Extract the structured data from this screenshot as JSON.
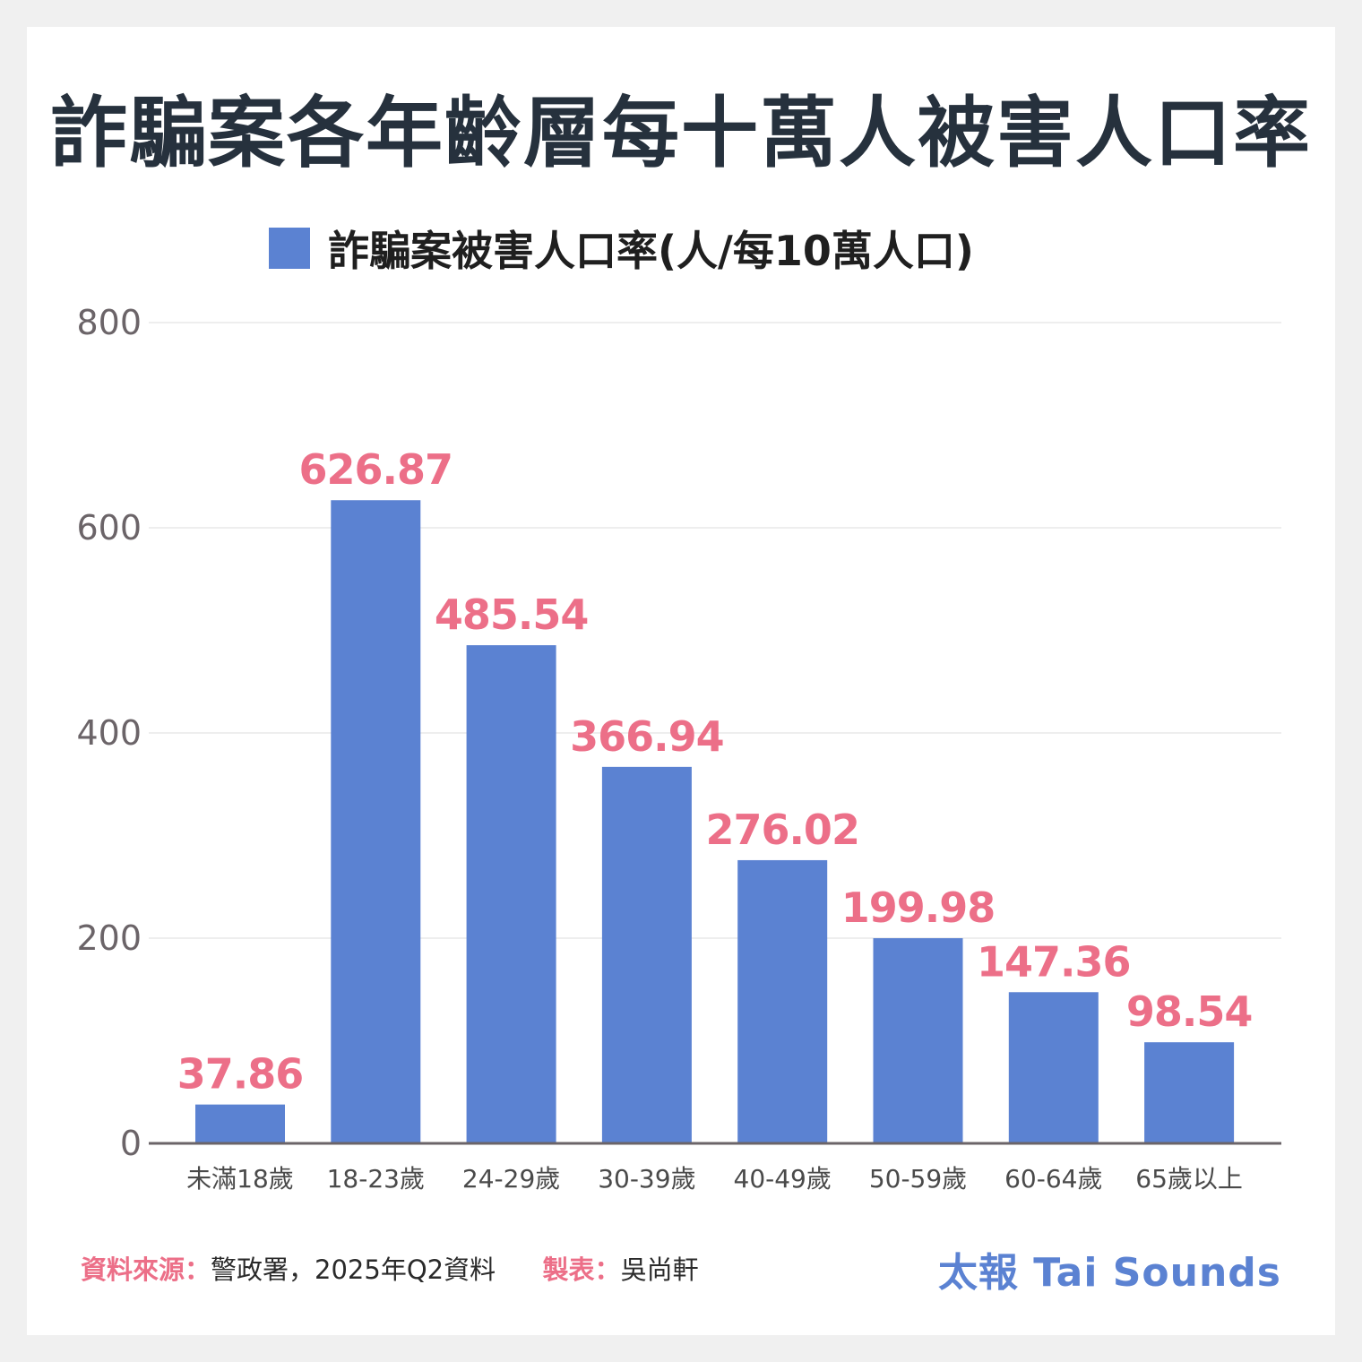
{
  "title": "詐騙案各年齡層每十萬人被害人口率",
  "colors": {
    "bar": "#5b82d2",
    "value_label": "#ec6f88",
    "axis": "#6b6468",
    "grid": "#dddddd",
    "tick_label": "#6b6468"
  },
  "chart_data": {
    "type": "bar",
    "categories": [
      "未滿18歲",
      "18-23歲",
      "24-29歲",
      "30-39歲",
      "40-49歲",
      "50-59歲",
      "60-64歲",
      "65歲以上"
    ],
    "series": [
      {
        "name": "詐騙案被害人口率(人/每10萬人口)",
        "values": [
          37.86,
          626.87,
          485.54,
          366.94,
          276.02,
          199.98,
          147.36,
          98.54
        ]
      }
    ],
    "value_labels": [
      "37.86",
      "626.87",
      "485.54",
      "366.94",
      "276.02",
      "199.98",
      "147.36",
      "98.54"
    ],
    "y_ticks": [
      "0",
      "200",
      "400",
      "600",
      "800"
    ],
    "ylim": [
      0,
      800
    ],
    "grid": true,
    "legend_position": "top"
  },
  "footer": {
    "source_label": "資料來源：",
    "source_text": "警政署，2025年Q2資料",
    "author_label": "製表：",
    "author_text": "吳尚軒",
    "brand": "太報 Tai Sounds"
  }
}
